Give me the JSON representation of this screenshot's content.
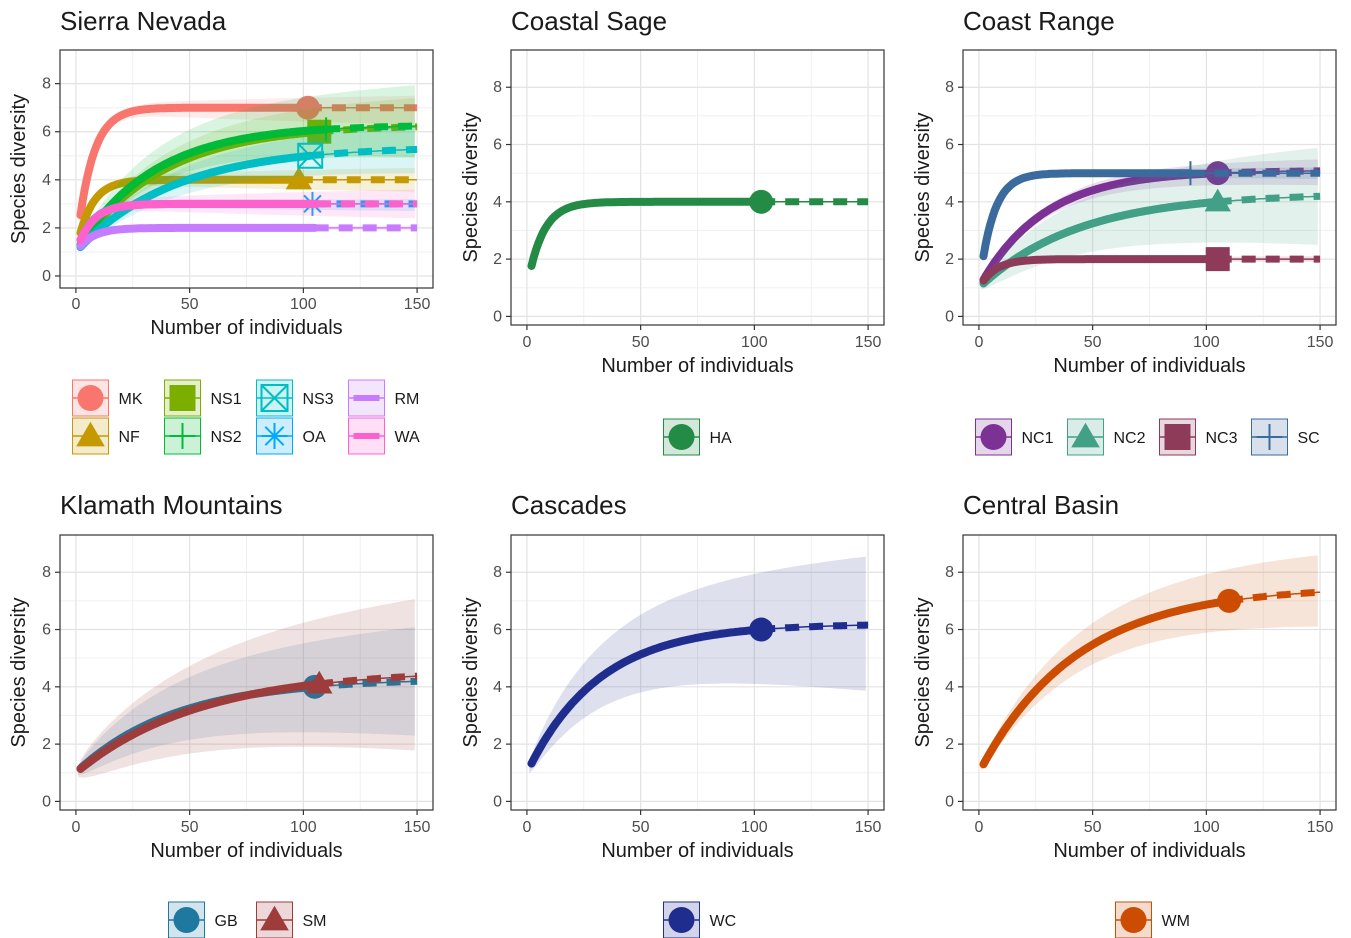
{
  "chart_data": [
    {
      "type": "line",
      "title": "Sierra Nevada",
      "xlabel": "Number of individuals",
      "ylabel": "Species diversity",
      "xlim": [
        -7,
        157
      ],
      "ylim": [
        -0.5,
        9.4
      ],
      "xticks": [
        0,
        50,
        100,
        150
      ],
      "yticks": [
        0,
        2,
        4,
        6,
        8
      ],
      "grid": true,
      "legend_position": "bottom",
      "series": [
        {
          "name": "MK",
          "color": "#F8766D",
          "marker": "circle",
          "observed": {
            "x": 102,
            "y": 7.0
          },
          "asymptote": 7.0,
          "max_x": 150,
          "ci_end": [
            6.3,
            7.5
          ]
        },
        {
          "name": "NF",
          "color": "#C49A00",
          "marker": "triangle",
          "observed": {
            "x": 98,
            "y": 4.0
          },
          "asymptote": 4.0,
          "max_x": 150,
          "ci_end": [
            3.5,
            4.5
          ]
        },
        {
          "name": "NS1",
          "color": "#7CAE00",
          "marker": "square",
          "observed": {
            "x": 107,
            "y": 6.0
          },
          "asymptote": 6.3,
          "max_x": 150,
          "ci_end": [
            5.0,
            7.5
          ]
        },
        {
          "name": "NS2",
          "color": "#00BA38",
          "marker": "cross",
          "observed": {
            "x": 110,
            "y": 6.1
          },
          "asymptote": 6.3,
          "max_x": 150,
          "ci_end": [
            5.0,
            8.0
          ]
        },
        {
          "name": "NS3",
          "color": "#00BFC4",
          "marker": "boxx",
          "observed": {
            "x": 103,
            "y": 5.0
          },
          "asymptote": 5.4,
          "max_x": 150,
          "ci_end": [
            4.4,
            6.4
          ]
        },
        {
          "name": "OA",
          "color": "#00A9FF",
          "marker": "asterisk",
          "observed": {
            "x": 104,
            "y": 3.0
          },
          "asymptote": 3.0,
          "max_x": 150,
          "ci_end": [
            2.7,
            3.2
          ]
        },
        {
          "name": "RM",
          "color": "#C77CFF",
          "marker": "dash",
          "observed": {
            "x": 105,
            "y": 2.0
          },
          "asymptote": 2.0,
          "max_x": 150,
          "ci_end": [
            1.9,
            2.1
          ]
        },
        {
          "name": "WA",
          "color": "#FF61CC",
          "marker": "dash",
          "observed": {
            "x": 106,
            "y": 3.0
          },
          "asymptote": 3.0,
          "max_x": 150,
          "ci_end": [
            2.4,
            3.6
          ]
        }
      ]
    },
    {
      "type": "line",
      "title": "Coastal Sage",
      "xlabel": "Number of individuals",
      "ylabel": "Species diversity",
      "xlim": [
        -7,
        157
      ],
      "ylim": [
        -0.3,
        9.3
      ],
      "xticks": [
        0,
        50,
        100,
        150
      ],
      "yticks": [
        0,
        2,
        4,
        6,
        8
      ],
      "grid": true,
      "legend_position": "bottom",
      "series": [
        {
          "name": "HA",
          "color": "#238B45",
          "marker": "circle",
          "observed": {
            "x": 103,
            "y": 4.0
          },
          "asymptote": 4.0,
          "max_x": 150,
          "ci_end": [
            4.0,
            4.0
          ]
        }
      ]
    },
    {
      "type": "line",
      "title": "Coast Range",
      "xlabel": "Number of individuals",
      "ylabel": "Species diversity",
      "xlim": [
        -7,
        157
      ],
      "ylim": [
        -0.3,
        9.3
      ],
      "xticks": [
        0,
        50,
        100,
        150
      ],
      "yticks": [
        0,
        2,
        4,
        6,
        8
      ],
      "grid": true,
      "legend_position": "bottom",
      "series": [
        {
          "name": "NC1",
          "color": "#7B3294",
          "marker": "circle",
          "observed": {
            "x": 105,
            "y": 5.0
          },
          "asymptote": 5.1,
          "max_x": 150,
          "ci_end": [
            4.6,
            5.5
          ]
        },
        {
          "name": "NC2",
          "color": "#41A085",
          "marker": "triangle",
          "observed": {
            "x": 105,
            "y": 4.0
          },
          "asymptote": 4.3,
          "max_x": 150,
          "ci_end": [
            2.6,
            6.0
          ]
        },
        {
          "name": "NC3",
          "color": "#8E3A59",
          "marker": "square",
          "observed": {
            "x": 105,
            "y": 2.0
          },
          "asymptote": 2.0,
          "max_x": 150,
          "ci_end": [
            1.9,
            2.1
          ]
        },
        {
          "name": "SC",
          "color": "#3B6A9C",
          "marker": "cross",
          "observed": {
            "x": 93,
            "y": 5.0
          },
          "asymptote": 5.0,
          "max_x": 150,
          "ci_end": [
            4.8,
            5.2
          ]
        }
      ]
    },
    {
      "type": "line",
      "title": "Klamath Mountains",
      "xlabel": "Number of individuals",
      "ylabel": "Species diversity",
      "xlim": [
        -7,
        157
      ],
      "ylim": [
        -0.3,
        9.3
      ],
      "xticks": [
        0,
        50,
        100,
        150
      ],
      "yticks": [
        0,
        2,
        4,
        6,
        8
      ],
      "grid": true,
      "legend_position": "bottom",
      "series": [
        {
          "name": "GB",
          "color": "#1F78A0",
          "marker": "circle",
          "observed": {
            "x": 105,
            "y": 4.0
          },
          "asymptote": 4.3,
          "max_x": 150,
          "ci_end": [
            2.4,
            6.2
          ]
        },
        {
          "name": "SM",
          "color": "#9E3B3B",
          "marker": "triangle",
          "observed": {
            "x": 107,
            "y": 4.1
          },
          "asymptote": 4.6,
          "max_x": 150,
          "ci_end": [
            2.0,
            7.3
          ]
        }
      ]
    },
    {
      "type": "line",
      "title": "Cascades",
      "xlabel": "Number of individuals",
      "ylabel": "Species diversity",
      "xlim": [
        -7,
        157
      ],
      "ylim": [
        -0.3,
        9.3
      ],
      "xticks": [
        0,
        50,
        100,
        150
      ],
      "yticks": [
        0,
        2,
        4,
        6,
        8
      ],
      "grid": true,
      "legend_position": "bottom",
      "series": [
        {
          "name": "WC",
          "color": "#1F2D8F",
          "marker": "circle",
          "observed": {
            "x": 103,
            "y": 6.0
          },
          "asymptote": 6.2,
          "max_x": 150,
          "ci_end": [
            3.9,
            8.6
          ]
        }
      ]
    },
    {
      "type": "line",
      "title": "Central Basin",
      "xlabel": "Number of individuals",
      "ylabel": "Species diversity",
      "xlim": [
        -7,
        157
      ],
      "ylim": [
        -0.3,
        9.3
      ],
      "xticks": [
        0,
        50,
        100,
        150
      ],
      "yticks": [
        0,
        2,
        4,
        6,
        8
      ],
      "grid": true,
      "legend_position": "bottom",
      "series": [
        {
          "name": "WM",
          "color": "#CC4C02",
          "marker": "circle",
          "observed": {
            "x": 110,
            "y": 7.0
          },
          "asymptote": 7.5,
          "max_x": 150,
          "ci_end": [
            6.3,
            8.8
          ]
        }
      ]
    }
  ]
}
